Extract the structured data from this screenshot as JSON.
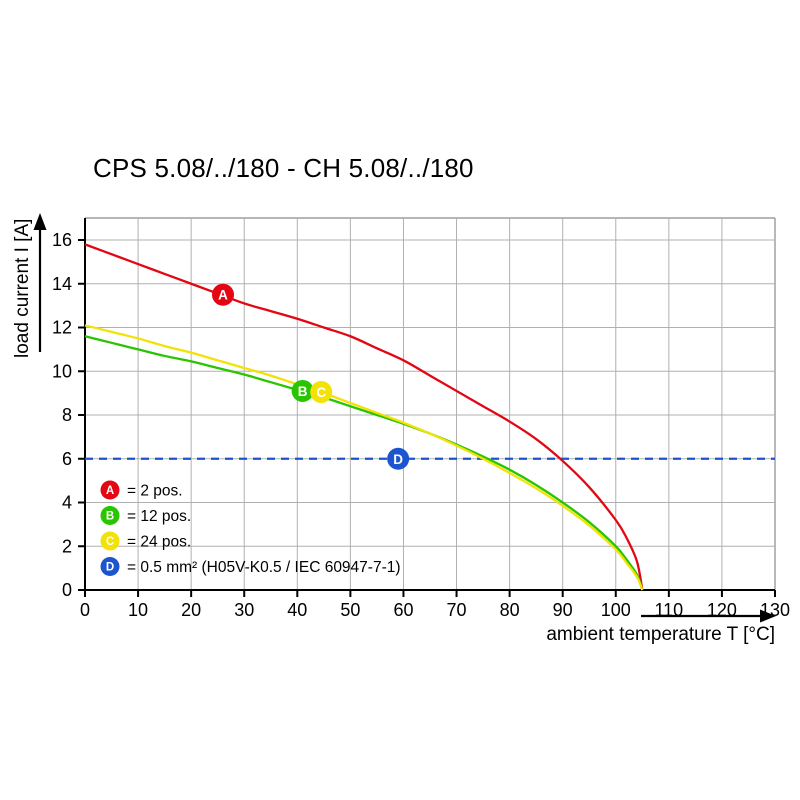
{
  "chart_data": {
    "type": "line",
    "title": "CPS 5.08/../180 - CH 5.08/../180",
    "xlabel": "ambient temperature T [°C]",
    "ylabel": "load current I [A]",
    "xlim": [
      0,
      130
    ],
    "ylim": [
      0,
      16
    ],
    "xticks": [
      0,
      10,
      20,
      30,
      40,
      50,
      60,
      70,
      80,
      90,
      100,
      110,
      120,
      130
    ],
    "yticks": [
      0,
      2,
      4,
      6,
      8,
      10,
      12,
      14,
      16
    ],
    "grid": true,
    "legend_position": "inside-bottom-left",
    "colors": {
      "grid": "#b0b0b0",
      "axis": "#000000",
      "frame": "#8a8a8a"
    },
    "series": [
      {
        "id": "A",
        "legend": "= 2 pos.",
        "color": "#e30613",
        "style": "solid",
        "points": [
          [
            0,
            15.8
          ],
          [
            5,
            15.35
          ],
          [
            10,
            14.9
          ],
          [
            15,
            14.45
          ],
          [
            20,
            14.0
          ],
          [
            25,
            13.55
          ],
          [
            30,
            13.1
          ],
          [
            35,
            12.75
          ],
          [
            40,
            12.4
          ],
          [
            45,
            12.0
          ],
          [
            50,
            11.6
          ],
          [
            55,
            11.05
          ],
          [
            60,
            10.5
          ],
          [
            65,
            9.8
          ],
          [
            70,
            9.1
          ],
          [
            75,
            8.4
          ],
          [
            80,
            7.7
          ],
          [
            85,
            6.9
          ],
          [
            90,
            5.9
          ],
          [
            95,
            4.7
          ],
          [
            100,
            3.2
          ],
          [
            102,
            2.4
          ],
          [
            104,
            1.3
          ],
          [
            105,
            0
          ]
        ],
        "marker": {
          "x": 26,
          "y": 13.5,
          "label": "A"
        }
      },
      {
        "id": "B",
        "legend": "= 12 pos.",
        "color": "#29c500",
        "style": "solid",
        "points": [
          [
            0,
            11.6
          ],
          [
            5,
            11.3
          ],
          [
            10,
            11.0
          ],
          [
            15,
            10.7
          ],
          [
            20,
            10.45
          ],
          [
            25,
            10.15
          ],
          [
            30,
            9.85
          ],
          [
            35,
            9.5
          ],
          [
            40,
            9.15
          ],
          [
            45,
            8.8
          ],
          [
            50,
            8.4
          ],
          [
            55,
            8.0
          ],
          [
            60,
            7.6
          ],
          [
            65,
            7.15
          ],
          [
            70,
            6.65
          ],
          [
            75,
            6.1
          ],
          [
            80,
            5.5
          ],
          [
            85,
            4.8
          ],
          [
            90,
            4.0
          ],
          [
            95,
            3.1
          ],
          [
            100,
            2.0
          ],
          [
            102,
            1.4
          ],
          [
            104,
            0.7
          ],
          [
            105,
            0
          ]
        ],
        "marker": {
          "x": 41,
          "y": 9.1,
          "label": "B"
        }
      },
      {
        "id": "C",
        "legend": "= 24 pos.",
        "color": "#f2e205",
        "style": "solid",
        "points": [
          [
            0,
            12.1
          ],
          [
            5,
            11.8
          ],
          [
            10,
            11.5
          ],
          [
            15,
            11.15
          ],
          [
            20,
            10.85
          ],
          [
            25,
            10.5
          ],
          [
            30,
            10.15
          ],
          [
            35,
            9.8
          ],
          [
            40,
            9.4
          ],
          [
            45,
            9.0
          ],
          [
            50,
            8.55
          ],
          [
            55,
            8.1
          ],
          [
            60,
            7.65
          ],
          [
            65,
            7.15
          ],
          [
            70,
            6.6
          ],
          [
            75,
            6.0
          ],
          [
            80,
            5.35
          ],
          [
            85,
            4.65
          ],
          [
            90,
            3.85
          ],
          [
            95,
            2.95
          ],
          [
            100,
            1.85
          ],
          [
            102,
            1.25
          ],
          [
            104,
            0.6
          ],
          [
            105,
            0
          ]
        ],
        "marker": {
          "x": 44.5,
          "y": 9.05,
          "label": "C"
        }
      },
      {
        "id": "D",
        "legend": "= 0.5 mm² (H05V-K0.5 / IEC 60947-7-1)",
        "color": "#1c55cf",
        "style": "dashed",
        "points": [
          [
            0,
            6
          ],
          [
            130,
            6
          ]
        ],
        "marker": {
          "x": 59,
          "y": 6,
          "label": "D"
        }
      }
    ]
  }
}
